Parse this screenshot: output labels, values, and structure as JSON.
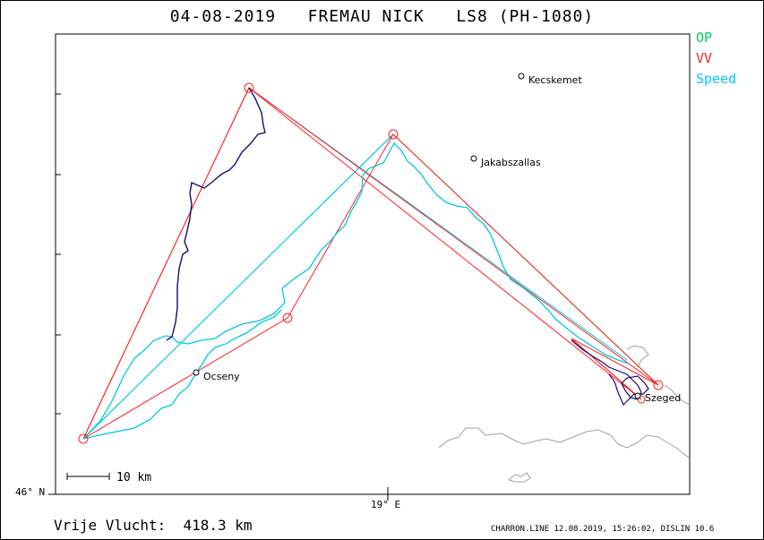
{
  "title": "04-08-2019   FREMAU NICK   LS8 (PH-1080)",
  "legend": {
    "op": {
      "label": "OP",
      "color": "#00cc66"
    },
    "vv": {
      "label": "VV",
      "color": "#ff2020"
    },
    "speed": {
      "label": "Speed",
      "color": "#00c8ff"
    }
  },
  "places": [
    {
      "name": "Kecskemet"
    },
    {
      "name": "Jakabszallas"
    },
    {
      "name": "Ocseny"
    },
    {
      "name": "Szeged"
    }
  ],
  "axis": {
    "lat_label": "46° N",
    "lon_label": "19° E"
  },
  "scale_label": "10 km",
  "footer": {
    "distance": "Vrije Vlucht:  418.3 km",
    "credit": "CHARRON.LINE 12.08.2019, 15:26:02, DISLIN 10.6"
  },
  "colors": {
    "track": "#1a0a6e",
    "route": "#ff2020",
    "speed": "#00c8e0",
    "border": "#a0a0a0"
  }
}
